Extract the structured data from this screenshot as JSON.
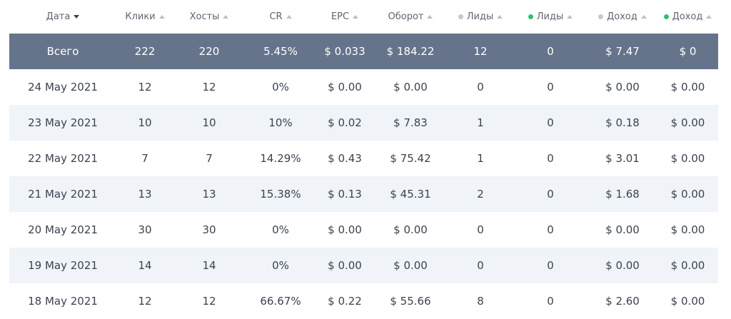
{
  "headers": [
    {
      "label": "Дата",
      "sort": "active-desc",
      "dot": ""
    },
    {
      "label": "Клики",
      "sort": "inactive",
      "dot": ""
    },
    {
      "label": "Хосты",
      "sort": "inactive",
      "dot": ""
    },
    {
      "label": "CR",
      "sort": "inactive",
      "dot": ""
    },
    {
      "label": "EPC",
      "sort": "inactive",
      "dot": ""
    },
    {
      "label": "Оборот",
      "sort": "inactive",
      "dot": ""
    },
    {
      "label": "Лиды",
      "sort": "inactive",
      "dot": "grey"
    },
    {
      "label": "Лиды",
      "sort": "inactive",
      "dot": "green"
    },
    {
      "label": "Доход",
      "sort": "inactive",
      "dot": "grey"
    },
    {
      "label": "Доход",
      "sort": "inactive",
      "dot": "green"
    }
  ],
  "total": [
    "Всего",
    "222",
    "220",
    "5.45%",
    "$ 0.033",
    "$ 184.22",
    "12",
    "0",
    "$ 7.47",
    "$ 0"
  ],
  "rows": [
    [
      "24 May 2021",
      "12",
      "12",
      "0%",
      "$ 0.00",
      "$ 0.00",
      "0",
      "0",
      "$ 0.00",
      "$ 0.00"
    ],
    [
      "23 May 2021",
      "10",
      "10",
      "10%",
      "$ 0.02",
      "$ 7.83",
      "1",
      "0",
      "$ 0.18",
      "$ 0.00"
    ],
    [
      "22 May 2021",
      "7",
      "7",
      "14.29%",
      "$ 0.43",
      "$ 75.42",
      "1",
      "0",
      "$ 3.01",
      "$ 0.00"
    ],
    [
      "21 May 2021",
      "13",
      "13",
      "15.38%",
      "$ 0.13",
      "$ 45.31",
      "2",
      "0",
      "$ 1.68",
      "$ 0.00"
    ],
    [
      "20 May 2021",
      "30",
      "30",
      "0%",
      "$ 0.00",
      "$ 0.00",
      "0",
      "0",
      "$ 0.00",
      "$ 0.00"
    ],
    [
      "19 May 2021",
      "14",
      "14",
      "0%",
      "$ 0.00",
      "$ 0.00",
      "0",
      "0",
      "$ 0.00",
      "$ 0.00"
    ],
    [
      "18 May 2021",
      "12",
      "12",
      "66.67%",
      "$ 0.22",
      "$ 55.66",
      "8",
      "0",
      "$ 2.60",
      "$ 0.00"
    ]
  ],
  "colors": {
    "total_bg": "#65748a",
    "alt_row_bg": "#f0f3f8",
    "dot_grey": "#c3c8d3",
    "dot_green": "#2ec26a"
  }
}
